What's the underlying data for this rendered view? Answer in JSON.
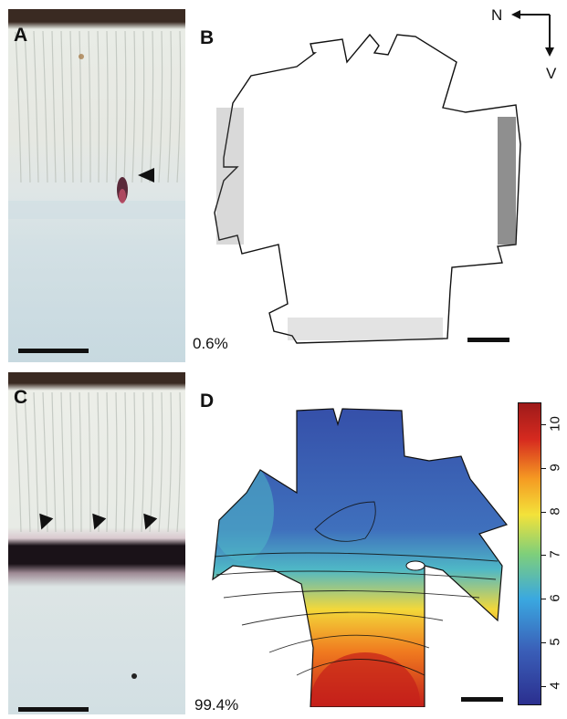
{
  "panels": {
    "a": {
      "letter": "A"
    },
    "b": {
      "letter": "B",
      "percent": "0.6%"
    },
    "c": {
      "letter": "C"
    },
    "d": {
      "letter": "D",
      "percent": "99.4%"
    }
  },
  "compass": {
    "north": "N",
    "ventral": "V"
  },
  "colorbar": {
    "ticks": [
      "4",
      "5",
      "6",
      "7",
      "8",
      "9",
      "10"
    ],
    "min": 3.6,
    "max": 10.5,
    "colors": [
      "#2b2f8f",
      "#3a5fb8",
      "#3aa8e0",
      "#7fcf7a",
      "#f3e23a",
      "#f59a22",
      "#d62a1f",
      "#9e1a1a"
    ]
  },
  "colors": {
    "photo_bg": "#cfdde0",
    "rod_outer": "#e8eeec",
    "pigment": "#1a1218"
  }
}
